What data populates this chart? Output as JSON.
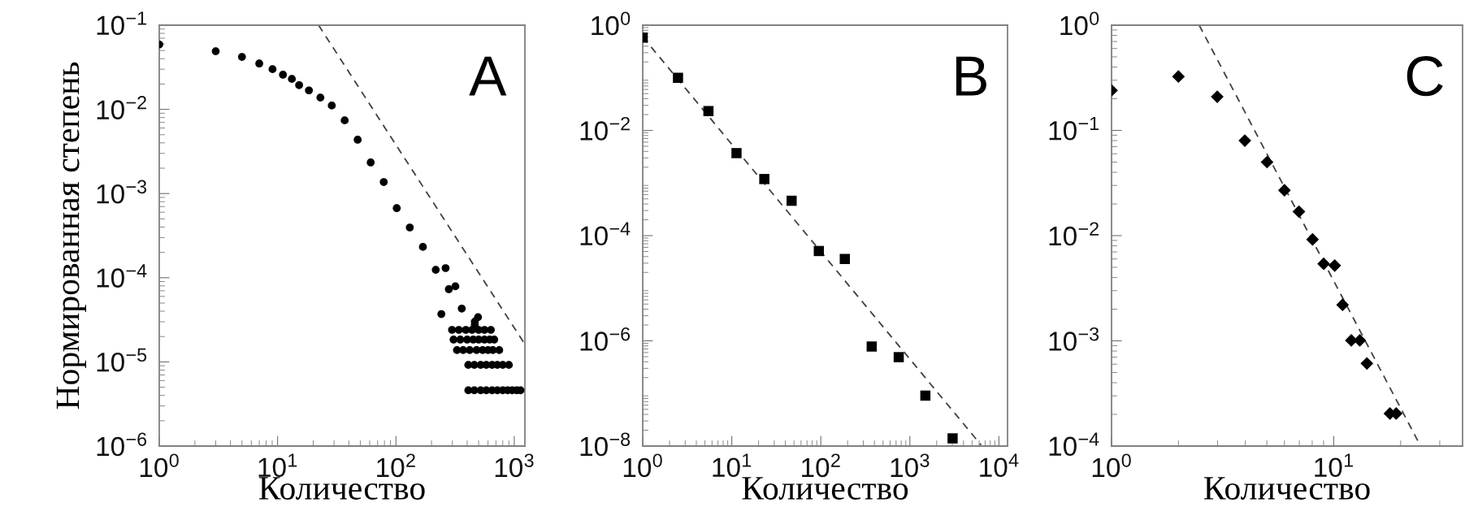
{
  "chart_data": [
    {
      "type": "scatter",
      "xlabel": "Количество",
      "ylabel": "Нормированная степень",
      "log": "xy",
      "grid": false,
      "annotations": [
        "A"
      ],
      "xlim": [
        1,
        1230
      ],
      "xticks": [
        {
          "value": 1,
          "label": "10$^{0}$"
        },
        {
          "value": 10,
          "label": "10$^{1}$"
        },
        {
          "value": 100,
          "label": "10$^{2}$"
        },
        {
          "value": 1000,
          "label": "10$^{3}$"
        }
      ],
      "ylim": [
        1e-06,
        0.1
      ],
      "yticks": [
        {
          "value": 1e-06,
          "label": "10$^{−6}$"
        },
        {
          "value": 1e-05,
          "label": "10$^{−5}$"
        },
        {
          "value": 0.0001,
          "label": "10$^{−4}$"
        },
        {
          "value": 0.001,
          "label": "10$^{−3}$"
        },
        {
          "value": 0.01,
          "label": "10$^{−2}$"
        },
        {
          "value": 0.1,
          "label": "10$^{−1}$"
        }
      ],
      "series": [
        {
          "marker": "circle",
          "color": "#000000",
          "x": [
            1,
            3,
            5,
            7,
            9.06,
            11.1,
            13.2,
            15.2,
            18.4,
            23,
            28.7,
            36.9,
            47.5,
            61.2,
            78.9,
            101.6,
            131,
            169,
            217,
            280,
            360,
            464,
            242,
            263,
            318,
            464,
            494,
            298,
            340,
            390,
            440,
            500,
            560,
            634,
            307,
            350,
            400,
            450,
            500,
            560,
            620,
            677,
            328,
            370,
            420,
            480,
            540,
            600,
            660,
            746,
            409,
            460,
            520,
            580,
            650,
            720,
            800,
            900,
            409,
            460,
            520,
            580,
            650,
            720,
            800,
            880,
            960,
            1050,
            1130
          ],
          "values": [
            0.059,
            0.049,
            0.042,
            0.035,
            0.03,
            0.0258,
            0.023,
            0.0194,
            0.0168,
            0.0138,
            0.0111,
            0.0074,
            0.00436,
            0.00234,
            0.00137,
            0.00067,
            0.000395,
            0.000232,
            0.000124,
            7.3e-05,
            4.3e-05,
            3e-05,
            3.7e-05,
            0.00013,
            7.9e-05,
            2.74e-05,
            3.4e-05,
            2.4e-05,
            2.4e-05,
            2.4e-05,
            2.4e-05,
            2.4e-05,
            2.4e-05,
            2.4e-05,
            1.84e-05,
            1.84e-05,
            1.84e-05,
            1.84e-05,
            1.84e-05,
            1.84e-05,
            1.84e-05,
            1.84e-05,
            1.38e-05,
            1.38e-05,
            1.38e-05,
            1.38e-05,
            1.38e-05,
            1.38e-05,
            1.38e-05,
            1.38e-05,
            9.2e-06,
            9.2e-06,
            9.2e-06,
            9.2e-06,
            9.2e-06,
            9.2e-06,
            9.2e-06,
            9.2e-06,
            4.6e-06,
            4.6e-06,
            4.6e-06,
            4.6e-06,
            4.6e-06,
            4.6e-06,
            4.6e-06,
            4.6e-06,
            4.6e-06,
            4.6e-06,
            4.6e-06
          ]
        },
        {
          "type": "line",
          "line_style": "dashed",
          "color": "#404040",
          "x": [
            22.2,
            1230
          ],
          "values": [
            0.1,
            1.62e-05
          ]
        }
      ]
    },
    {
      "type": "scatter",
      "xlabel": "Количество",
      "log": "xy",
      "grid": false,
      "annotations": [
        "B"
      ],
      "xlim": [
        1,
        12500
      ],
      "xticks": [
        {
          "value": 1,
          "label": "10$^{0}$"
        },
        {
          "value": 10,
          "label": "10$^{1}$"
        },
        {
          "value": 100,
          "label": "10$^{2}$"
        },
        {
          "value": 1000,
          "label": "10$^{3}$"
        },
        {
          "value": 10000,
          "label": "10$^{4}$"
        }
      ],
      "ylim": [
        1e-08,
        1
      ],
      "yticks": [
        {
          "value": 1e-08,
          "label": "10$^{−8}$"
        },
        {
          "value": 1e-06,
          "label": "10$^{−6}$"
        },
        {
          "value": 0.0001,
          "label": "10$^{−4}$"
        },
        {
          "value": 0.01,
          "label": "10$^{−2}$"
        },
        {
          "value": 1,
          "label": "10$^{0}$"
        }
      ],
      "series": [
        {
          "marker": "square",
          "color": "#000000",
          "x": [
            1,
            2.49,
            5.47,
            11.3,
            23.2,
            47,
            95,
            186,
            373,
            750,
            1493,
            3020
          ],
          "values": [
            0.58,
            0.1,
            0.0233,
            0.0037,
            0.00119,
            0.00046,
            5.1e-05,
            3.6e-05,
            7.8e-07,
            4.9e-07,
            9.1e-08,
            1.4e-08
          ]
        },
        {
          "type": "line",
          "line_style": "dashed",
          "color": "#404040",
          "x": [
            1,
            6300
          ],
          "values": [
            0.6,
            1.05e-08
          ]
        }
      ]
    },
    {
      "type": "scatter",
      "xlabel": "Количество",
      "log": "xy",
      "grid": false,
      "annotations": [
        "C"
      ],
      "xlim": [
        1,
        38
      ],
      "xticks": [
        {
          "value": 1,
          "label": "10$^{0}$"
        },
        {
          "value": 10,
          "label": "10$^{1}$"
        }
      ],
      "ylim": [
        0.0001,
        1
      ],
      "yticks": [
        {
          "value": 0.0001,
          "label": "10$^{−4}$"
        },
        {
          "value": 0.001,
          "label": "10$^{−3}$"
        },
        {
          "value": 0.01,
          "label": "10$^{−2}$"
        },
        {
          "value": 0.1,
          "label": "10$^{−1}$"
        },
        {
          "value": 1,
          "label": "10$^{0}$"
        }
      ],
      "series": [
        {
          "marker": "diamond",
          "color": "#000000",
          "x": [
            1,
            2,
            2.99,
            3.98,
            5.01,
            6,
            6.97,
            8.03,
            9.01,
            10.1,
            10.96,
            12,
            13.1,
            14.1,
            17.9,
            19.1
          ],
          "values": [
            0.24,
            0.325,
            0.209,
            0.08,
            0.05,
            0.027,
            0.0169,
            0.0092,
            0.0054,
            0.0052,
            0.0022,
            0.00101,
            0.00101,
            0.00061,
            0.000204,
            0.000204
          ]
        },
        {
          "type": "line",
          "line_style": "dashed",
          "color": "#404040",
          "x": [
            2.48,
            24.6
          ],
          "values": [
            1,
            0.0001
          ]
        }
      ]
    }
  ]
}
